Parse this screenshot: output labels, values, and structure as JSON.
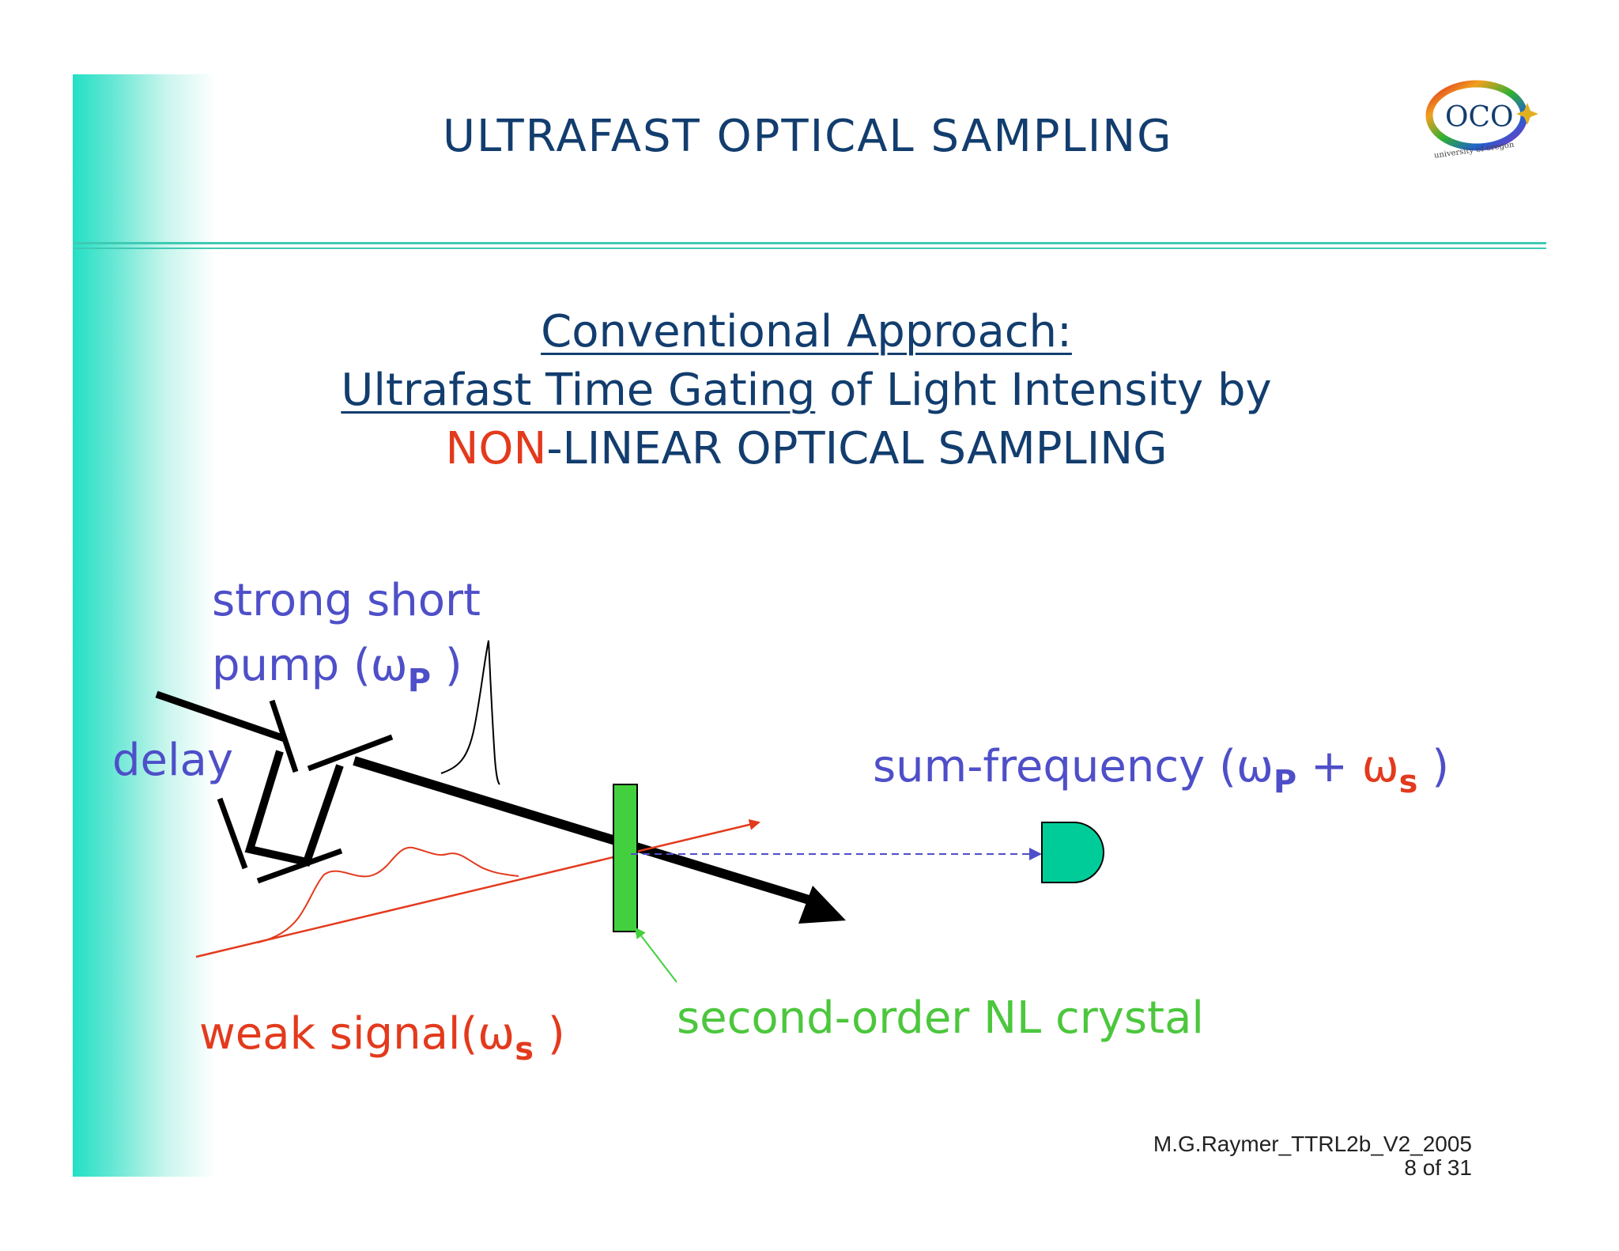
{
  "slide": {
    "title": "ULTRAFAST OPTICAL  SAMPLING",
    "heading": {
      "line1": "Conventional Approach:",
      "line2_underlined": "Ultrafast Time Gating",
      "line2_rest": " of Light Intensity by",
      "line3_red": "NON",
      "line3_rest": "-LINEAR  OPTICAL  SAMPLING"
    }
  },
  "logo": {
    "text": "OCO",
    "subtext": "university of oregon"
  },
  "diagram": {
    "pump_label_line1": "strong short",
    "pump_label_line2": "pump (ω",
    "pump_sub": "P",
    "pump_close": " )",
    "delay_label": "delay",
    "sum_label": "sum-frequency (ω",
    "sum_sub_p": "P",
    "sum_plus": " + ",
    "sum_omega_s": "ω",
    "sum_sub_s": "s",
    "sum_close": " )",
    "signal_label": "weak signal(ω",
    "signal_sub": "s",
    "signal_close": " )",
    "crystal_label": "second-order NL crystal",
    "colors": {
      "pump": "#4e4fc8",
      "signal": "#e33a1d",
      "crystal": "#43d03e",
      "detector": "#00cc99",
      "beam": "#000000"
    }
  },
  "footer": {
    "author": "M.G.Raymer_TTRL2b_V2_2005",
    "page": "8 of 31"
  }
}
